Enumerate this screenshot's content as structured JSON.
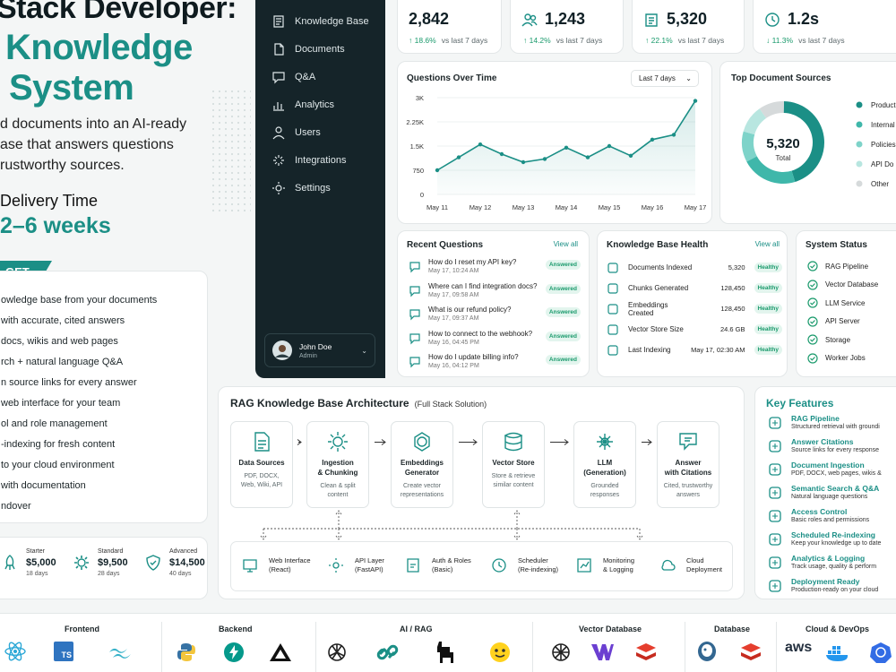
{
  "hero": {
    "title_line1": "Stack Developer:",
    "title_line2": "Knowledge",
    "title_line3": "System",
    "desc_line1": "d documents into an AI-ready",
    "desc_line2": "ase that answers questions",
    "desc_line3": "rustworthy sources.",
    "delivery_label": "Delivery Time",
    "delivery_value": "2–6 weeks",
    "get_label": "GET",
    "features": [
      "owledge base from your documents",
      "with accurate, cited answers",
      "docs, wikis and web pages",
      "rch + natural language Q&A",
      "n source links for every answer",
      "web interface for your team",
      "ol and role management",
      "-indexing for fresh content",
      "to your cloud environment",
      "with documentation",
      "ndover"
    ]
  },
  "pricing": [
    {
      "tier": "Starter",
      "price": "$5,000",
      "days": "18 days"
    },
    {
      "tier": "Standard",
      "price": "$9,500",
      "days": "28 days"
    },
    {
      "tier": "Advanced",
      "price": "$14,500",
      "days": "40 days"
    }
  ],
  "sidebar": {
    "items": [
      "Knowledge Base",
      "Documents",
      "Q&A",
      "Analytics",
      "Users",
      "Integrations",
      "Settings"
    ],
    "user_name": "John Doe",
    "user_role": "Admin"
  },
  "stats": [
    {
      "value": "2,842",
      "change": "↑ 18.6%",
      "period": "vs last 7 days",
      "positive": true
    },
    {
      "value": "1,243",
      "change": "↑ 14.2%",
      "period": "vs last 7 days",
      "positive": true
    },
    {
      "value": "5,320",
      "change": "↑ 22.1%",
      "period": "vs last 7 days",
      "positive": true
    },
    {
      "value": "1.2s",
      "change": "↓ 11.3%",
      "period": "vs last 7 days",
      "positive": true
    }
  ],
  "questions_chart": {
    "title": "Questions Over Time",
    "range_label": "Last 7 days"
  },
  "chart_data": [
    {
      "type": "line",
      "title": "Questions Over Time",
      "x": [
        "May 11",
        "",
        "May 12",
        "",
        "May 13",
        "",
        "May 14",
        "",
        "May 15",
        "",
        "May 16",
        "",
        "May 17"
      ],
      "x_ticks": [
        "May 11",
        "May 12",
        "May 13",
        "May 14",
        "May 15",
        "May 16",
        "May 17"
      ],
      "y_ticks": [
        "0",
        "750",
        "1.5K",
        "2.25K",
        "3K"
      ],
      "values": [
        750,
        1150,
        1550,
        1250,
        1000,
        1100,
        1450,
        1150,
        1500,
        1200,
        1700,
        1850,
        2900
      ],
      "ylim": [
        0,
        3000
      ],
      "grid": true,
      "color": "#1b8f86"
    },
    {
      "type": "pie",
      "title": "Top Document Sources",
      "center_value": "5,320",
      "center_label": "Total",
      "categories": [
        "Product",
        "Internal",
        "Policies",
        "API Do",
        "Other"
      ],
      "values": [
        45,
        22,
        12,
        11,
        10
      ],
      "colors": [
        "#1b8f86",
        "#3fb7aa",
        "#7ed3c9",
        "#b8e6e0",
        "#d6dadb"
      ],
      "legend": "right"
    }
  ],
  "donut": {
    "title": "Top Document Sources"
  },
  "recent_questions": {
    "title": "Recent Questions",
    "view_all": "View all",
    "items": [
      {
        "q": "How do I reset my API key?",
        "time": "May 17, 10:24 AM",
        "status": "Answered"
      },
      {
        "q": "Where can I find integration docs?",
        "time": "May 17, 09:58 AM",
        "status": "Answered"
      },
      {
        "q": "What is our refund policy?",
        "time": "May 17, 09:37 AM",
        "status": "Answered"
      },
      {
        "q": "How to connect to the webhook?",
        "time": "May 16, 04:45 PM",
        "status": "Answered"
      },
      {
        "q": "How do I update billing info?",
        "time": "May 16, 04:12 PM",
        "status": "Answered"
      }
    ]
  },
  "kb_health": {
    "title": "Knowledge Base Health",
    "view_all": "View all",
    "items": [
      {
        "label": "Documents Indexed",
        "value": "5,320",
        "status": "Healthy"
      },
      {
        "label": "Chunks Generated",
        "value": "128,450",
        "status": "Healthy"
      },
      {
        "label": "Embeddings Created",
        "value": "128,450",
        "status": "Healthy"
      },
      {
        "label": "Vector Store Size",
        "value": "24.6 GB",
        "status": "Healthy"
      },
      {
        "label": "Last Indexing",
        "value": "May 17, 02:30 AM",
        "status": "Healthy"
      }
    ]
  },
  "system_status": {
    "title": "System Status",
    "items": [
      "RAG Pipeline",
      "Vector Database",
      "LLM Service",
      "API Server",
      "Storage",
      "Worker Jobs"
    ]
  },
  "architecture": {
    "title": "RAG Knowledge Base Architecture",
    "subtitle": "(Full Stack Solution)",
    "steps": [
      {
        "t1": "Data Sources",
        "t2": "",
        "s1": "PDF, DOCX,",
        "s2": "Web, Wiki, API"
      },
      {
        "t1": "Ingestion",
        "t2": "& Chunking",
        "s1": "Clean & split",
        "s2": "content"
      },
      {
        "t1": "Embeddings",
        "t2": "Generator",
        "s1": "Create vector",
        "s2": "representations"
      },
      {
        "t1": "Vector Store",
        "t2": "",
        "s1": "Store & retrieve",
        "s2": "similar content"
      },
      {
        "t1": "LLM",
        "t2": "(Generation)",
        "s1": "Grounded",
        "s2": "responses"
      },
      {
        "t1": "Answer",
        "t2": "with Citations",
        "s1": "Cited, trustworthy",
        "s2": "answers"
      }
    ],
    "bottom": [
      {
        "l1": "Web Interface",
        "l2": "(React)"
      },
      {
        "l1": "API Layer",
        "l2": "(FastAPI)"
      },
      {
        "l1": "Auth & Roles",
        "l2": "(Basic)"
      },
      {
        "l1": "Scheduler",
        "l2": "(Re-indexing)"
      },
      {
        "l1": "Monitoring",
        "l2": "& Logging"
      },
      {
        "l1": "Cloud",
        "l2": "Deployment"
      }
    ]
  },
  "key_features": {
    "title": "Key Features",
    "items": [
      {
        "title": "RAG Pipeline",
        "desc": "Structured retrieval with groundi"
      },
      {
        "title": "Answer Citations",
        "desc": "Source links for every response"
      },
      {
        "title": "Document Ingestion",
        "desc": "PDF, DOCX, web pages, wikis &"
      },
      {
        "title": "Semantic Search & Q&A",
        "desc": "Natural language questions"
      },
      {
        "title": "Access Control",
        "desc": "Basic roles and permissions"
      },
      {
        "title": "Scheduled Re-indexing",
        "desc": "Keep your knowledge up to date"
      },
      {
        "title": "Analytics & Logging",
        "desc": "Track usage, quality & perform"
      },
      {
        "title": "Deployment Ready",
        "desc": "Production-ready on your cloud"
      }
    ]
  },
  "tech_stack": {
    "headers": [
      "Frontend",
      "Backend",
      "AI / RAG",
      "Vector Database",
      "Database",
      "Cloud & DevOps"
    ],
    "ts_label": "TS",
    "aws_label": "aws"
  }
}
